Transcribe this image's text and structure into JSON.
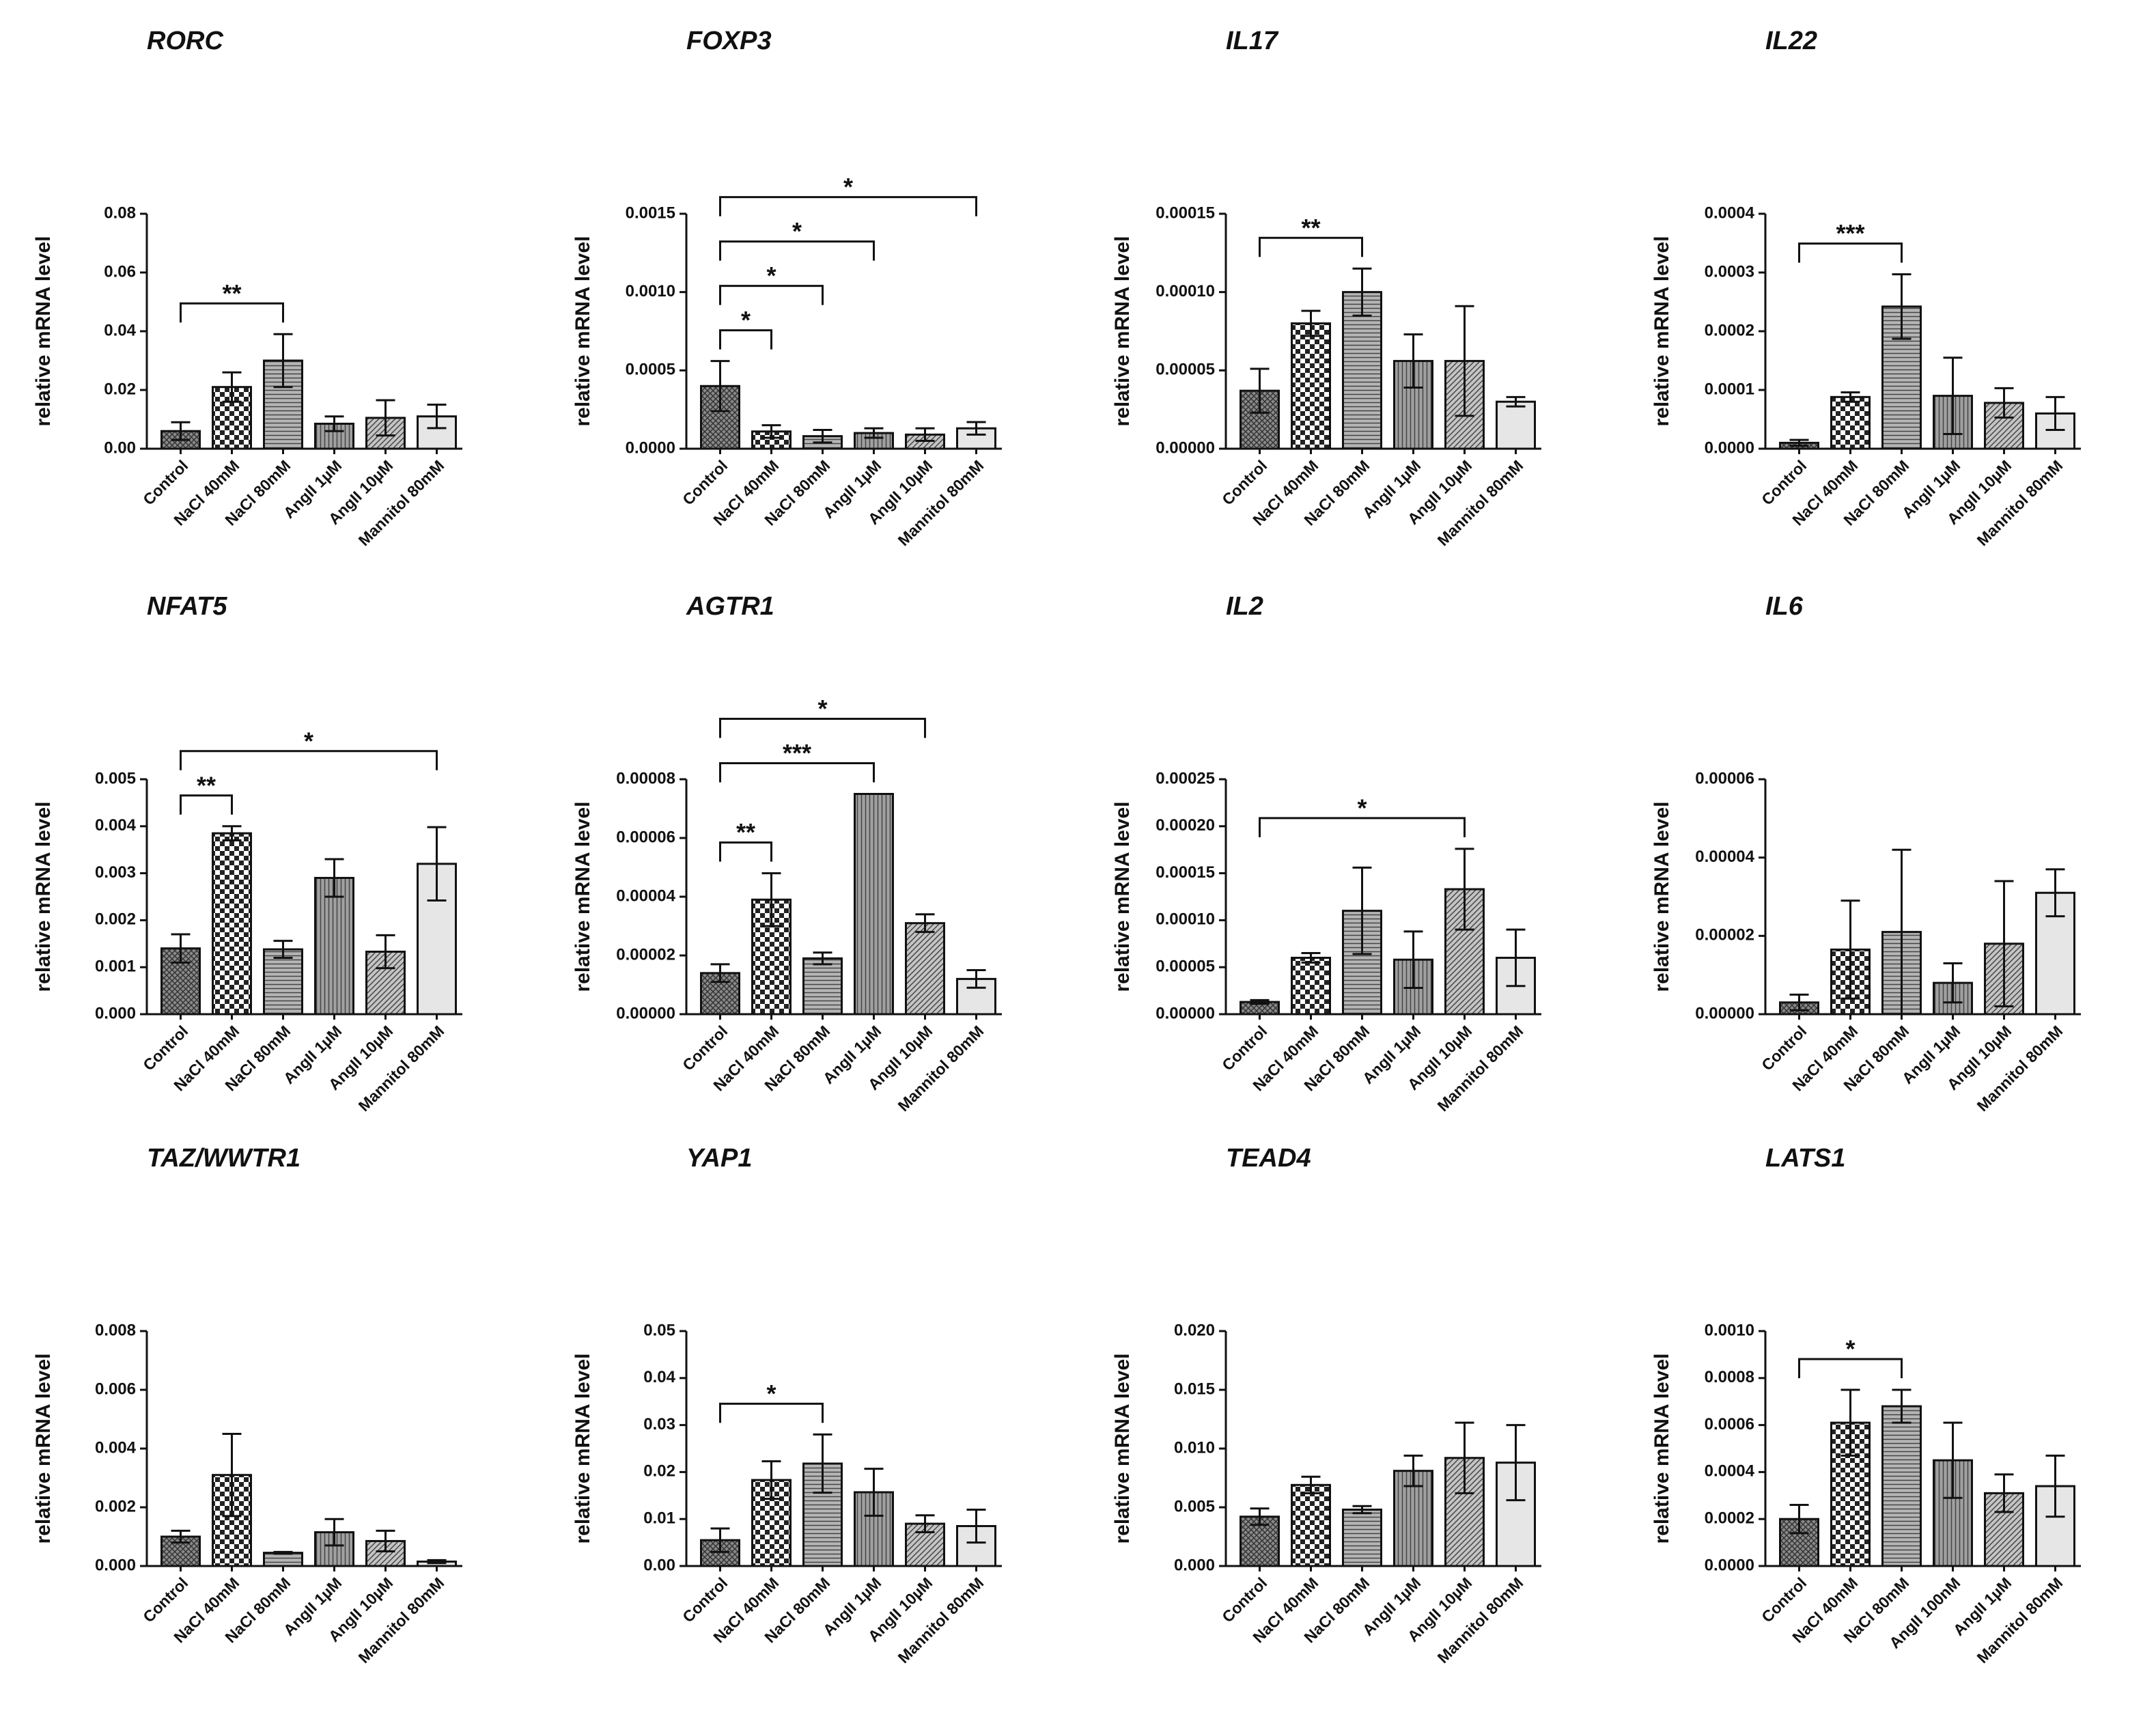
{
  "chart_data": [
    {
      "type": "bar",
      "title": "RORC",
      "ylabel": "relative mRNA level",
      "categories": [
        "Control",
        "NaCl 40mM",
        "NaCl 80mM",
        "AngII 1µM",
        "AngII 10µM",
        "Mannitol 80mM"
      ],
      "values": [
        0.006,
        0.021,
        0.03,
        0.0085,
        0.0105,
        0.011
      ],
      "errors": [
        0.003,
        0.005,
        0.009,
        0.0025,
        0.006,
        0.004
      ],
      "ylim": [
        0,
        0.08
      ],
      "yticks": [
        {
          "value": 0,
          "label": "0.00"
        },
        0.02,
        0.04,
        0.06,
        0.08
      ],
      "significance": [
        {
          "label": "**",
          "from": 0,
          "to": 2
        }
      ]
    },
    {
      "type": "bar",
      "title": "FOXP3",
      "ylabel": "relative mRNA level",
      "categories": [
        "Control",
        "NaCl 40mM",
        "NaCl 80mM",
        "AngII 1µM",
        "AngII 10µM",
        "Mannitol 80mM"
      ],
      "values": [
        0.0004,
        0.00011,
        8e-05,
        0.0001,
        9e-05,
        0.00013
      ],
      "errors": [
        0.00016,
        4e-05,
        4e-05,
        3e-05,
        4e-05,
        4e-05
      ],
      "ylim": [
        0,
        0.0015
      ],
      "yticks": [
        {
          "value": 0,
          "label": "0.0000"
        },
        0.0005,
        {
          "value": 0.001,
          "label": "0.0010"
        },
        0.0015
      ],
      "significance": [
        {
          "label": "*",
          "from": 0,
          "to": 1
        },
        {
          "label": "*",
          "from": 0,
          "to": 2
        },
        {
          "label": "*",
          "from": 0,
          "to": 3
        },
        {
          "label": "*",
          "from": 0,
          "to": 5
        }
      ]
    },
    {
      "type": "bar",
      "title": "IL17",
      "ylabel": "relative mRNA level",
      "categories": [
        "Control",
        "NaCl 40mM",
        "NaCl 80mM",
        "AngII 1µM",
        "AngII 10µM",
        "Mannitol 80mM"
      ],
      "values": [
        3.7e-05,
        8e-05,
        0.0001,
        5.6e-05,
        5.6e-05,
        3e-05
      ],
      "errors": [
        1.4e-05,
        8e-06,
        1.5e-05,
        1.7e-05,
        3.5e-05,
        3e-06
      ],
      "ylim": [
        0,
        0.00015
      ],
      "yticks": [
        {
          "value": 0,
          "label": "0.00000"
        },
        5e-05,
        {
          "value": 0.0001,
          "label": "0.00010"
        },
        0.00015
      ],
      "significance": [
        {
          "label": "**",
          "from": 0,
          "to": 2
        }
      ]
    },
    {
      "type": "bar",
      "title": "IL22",
      "ylabel": "relative mRNA level",
      "categories": [
        "Control",
        "NaCl 40mM",
        "NaCl 80mM",
        "AngII 1µM",
        "AngII 10µM",
        "Mannitol 80mM"
      ],
      "values": [
        1e-05,
        8.8e-05,
        0.000242,
        9e-05,
        7.8e-05,
        6e-05
      ],
      "errors": [
        5e-06,
        8e-06,
        5.5e-05,
        6.5e-05,
        2.5e-05,
        2.8e-05
      ],
      "ylim": [
        0,
        0.0004
      ],
      "yticks": [
        {
          "value": 0,
          "label": "0.0000"
        },
        0.0001,
        0.0002,
        0.0003,
        0.0004
      ],
      "significance": [
        {
          "label": "***",
          "from": 0,
          "to": 2
        }
      ]
    },
    {
      "type": "bar",
      "title": "NFAT5",
      "ylabel": "relative mRNA level",
      "categories": [
        "Control",
        "NaCl 40mM",
        "NaCl 80mM",
        "AngII 1µM",
        "AngII 10µM",
        "Mannitol 80mM"
      ],
      "values": [
        0.0014,
        0.00385,
        0.00138,
        0.0029,
        0.00133,
        0.0032
      ],
      "errors": [
        0.0003,
        0.00015,
        0.00018,
        0.0004,
        0.00035,
        0.00078
      ],
      "ylim": [
        0,
        0.005
      ],
      "yticks": [
        {
          "value": 0,
          "label": "0.000"
        },
        0.001,
        0.002,
        0.003,
        0.004,
        0.005
      ],
      "significance": [
        {
          "label": "**",
          "from": 0,
          "to": 1
        },
        {
          "label": "*",
          "from": 0,
          "to": 5
        }
      ]
    },
    {
      "type": "bar",
      "title": "AGTR1",
      "ylabel": "relative mRNA level",
      "categories": [
        "Control",
        "NaCl 40mM",
        "NaCl 80mM",
        "AngII 1µM",
        "AngII 10µM",
        "Mannitol 80mM"
      ],
      "values": [
        1.4e-05,
        3.9e-05,
        1.9e-05,
        7.5e-05,
        3.1e-05,
        1.2e-05
      ],
      "errors": [
        3e-06,
        9e-06,
        2e-06,
        0,
        3e-06,
        3e-06
      ],
      "ylim": [
        0,
        8e-05
      ],
      "yticks": [
        {
          "value": 0,
          "label": "0.00000"
        },
        2e-05,
        4e-05,
        6e-05,
        8e-05
      ],
      "significance": [
        {
          "label": "**",
          "from": 0,
          "to": 1
        },
        {
          "label": "***",
          "from": 0,
          "to": 3
        },
        {
          "label": "*",
          "from": 0,
          "to": 4
        }
      ]
    },
    {
      "type": "bar",
      "title": "IL2",
      "ylabel": "relative mRNA level",
      "categories": [
        "Control",
        "NaCl 40mM",
        "NaCl 80mM",
        "AngII 1µM",
        "AngII 10µM",
        "Mannitol 80mM"
      ],
      "values": [
        1.3e-05,
        6e-05,
        0.00011,
        5.8e-05,
        0.000133,
        6e-05
      ],
      "errors": [
        2e-06,
        5e-06,
        4.6e-05,
        3e-05,
        4.3e-05,
        3e-05
      ],
      "ylim": [
        0,
        0.00025
      ],
      "yticks": [
        {
          "value": 0,
          "label": "0.00000"
        },
        5e-05,
        {
          "value": 0.0001,
          "label": "0.00010"
        },
        0.00015,
        {
          "value": 0.0002,
          "label": "0.00020"
        },
        0.00025
      ],
      "significance": [
        {
          "label": "*",
          "from": 0,
          "to": 4
        }
      ]
    },
    {
      "type": "bar",
      "title": "IL6",
      "ylabel": "relative mRNA level",
      "categories": [
        "Control",
        "NaCl 40mM",
        "NaCl 80mM",
        "AngII 1µM",
        "AngII 10µM",
        "Mannitol 80mM"
      ],
      "values": [
        3e-06,
        1.65e-05,
        2.1e-05,
        8e-06,
        1.8e-05,
        3.1e-05
      ],
      "errors": [
        2e-06,
        1.25e-05,
        2.1e-05,
        5e-06,
        1.6e-05,
        6e-06
      ],
      "ylim": [
        0,
        6e-05
      ],
      "yticks": [
        {
          "value": 0,
          "label": "0.00000"
        },
        2e-05,
        4e-05,
        6e-05
      ],
      "significance": []
    },
    {
      "type": "bar",
      "title": "TAZ/WWTR1",
      "ylabel": "relative mRNA level",
      "categories": [
        "Control",
        "NaCl 40mM",
        "NaCl 80mM",
        "AngII 1µM",
        "AngII 10µM",
        "Mannitol 80mM"
      ],
      "values": [
        0.001,
        0.0031,
        0.00045,
        0.00115,
        0.00085,
        0.00015
      ],
      "errors": [
        0.0002,
        0.0014,
        3e-05,
        0.00045,
        0.00035,
        5e-05
      ],
      "ylim": [
        0,
        0.008
      ],
      "yticks": [
        {
          "value": 0,
          "label": "0.000"
        },
        0.002,
        0.004,
        0.006,
        0.008
      ],
      "significance": []
    },
    {
      "type": "bar",
      "title": "YAP1",
      "ylabel": "relative mRNA level",
      "categories": [
        "Control",
        "NaCl 40mM",
        "NaCl 80mM",
        "AngII 1µM",
        "AngII 10µM",
        "Mannitol 80mM"
      ],
      "values": [
        0.0055,
        0.0183,
        0.0218,
        0.0157,
        0.009,
        0.0085
      ],
      "errors": [
        0.0025,
        0.004,
        0.0062,
        0.005,
        0.0018,
        0.0035
      ],
      "ylim": [
        0,
        0.05
      ],
      "yticks": [
        {
          "value": 0,
          "label": "0.00"
        },
        0.01,
        0.02,
        0.03,
        0.04,
        0.05
      ],
      "significance": [
        {
          "label": "*",
          "from": 0,
          "to": 2
        }
      ]
    },
    {
      "type": "bar",
      "title": "TEAD4",
      "ylabel": "relative mRNA level",
      "categories": [
        "Control",
        "NaCl 40mM",
        "NaCl 80mM",
        "AngII 1µM",
        "AngII 10µM",
        "Mannitol 80mM"
      ],
      "values": [
        0.0042,
        0.0069,
        0.0048,
        0.0081,
        0.0092,
        0.0088
      ],
      "errors": [
        0.0007,
        0.0007,
        0.0003,
        0.0013,
        0.003,
        0.0032
      ],
      "ylim": [
        0,
        0.02
      ],
      "yticks": [
        {
          "value": 0,
          "label": "0.000"
        },
        0.005,
        {
          "value": 0.01,
          "label": "0.010"
        },
        0.015,
        {
          "value": 0.02,
          "label": "0.020"
        }
      ],
      "significance": []
    },
    {
      "type": "bar",
      "title": "LATS1",
      "ylabel": "relative mRNA level",
      "categories": [
        "Control",
        "NaCl 40mM",
        "NaCl 80mM",
        "AngII 100nM",
        "AngII 1µM",
        "Mannitol 80mM"
      ],
      "values": [
        0.0002,
        0.00061,
        0.00068,
        0.00045,
        0.00031,
        0.00034
      ],
      "errors": [
        6e-05,
        0.00014,
        7e-05,
        0.00016,
        8e-05,
        0.00013
      ],
      "ylim": [
        0,
        0.001
      ],
      "yticks": [
        {
          "value": 0,
          "label": "0.0000"
        },
        0.0002,
        0.0004,
        0.0006,
        0.0008,
        {
          "value": 0.001,
          "label": "0.0010"
        }
      ],
      "significance": [
        {
          "label": "*",
          "from": 0,
          "to": 2
        }
      ]
    }
  ]
}
